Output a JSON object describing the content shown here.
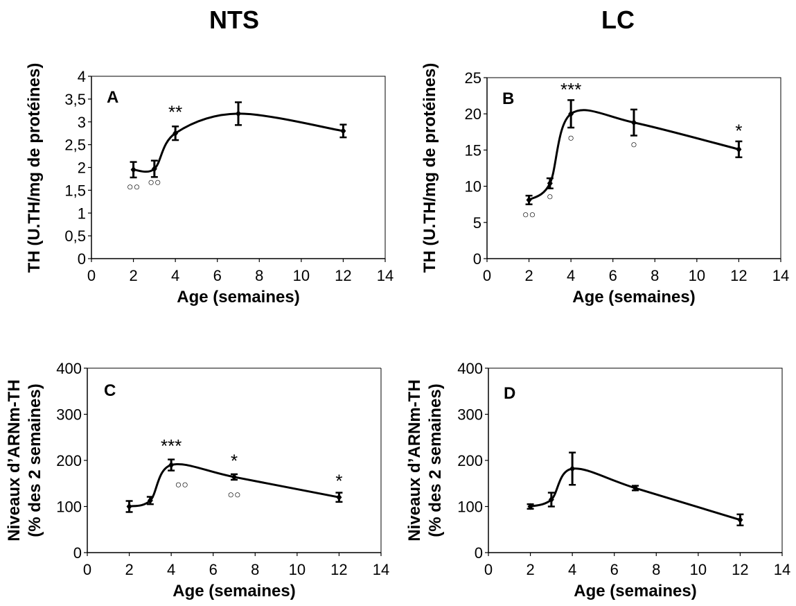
{
  "column_titles": [
    "NTS",
    "LC"
  ],
  "chart_data": [
    {
      "type": "line",
      "panel_label": "A",
      "xlabel": "Age (semaines)",
      "ylabel": [
        "TH (U.TH/mg de protéines)"
      ],
      "xlim": [
        0,
        14
      ],
      "ylim": [
        0,
        4
      ],
      "xticks": [
        0,
        2,
        4,
        6,
        8,
        10,
        12,
        14
      ],
      "yticks": [
        0,
        0.5,
        1,
        1.5,
        2,
        2.5,
        3,
        3.5,
        4
      ],
      "ytick_labels": [
        "0",
        "0,5",
        "1",
        "1,5",
        "2",
        "2,5",
        "3",
        "3,5",
        "4"
      ],
      "grid": false,
      "series": [
        {
          "x": [
            2,
            3,
            4,
            7,
            12
          ],
          "y": [
            1.95,
            1.97,
            2.75,
            3.18,
            2.8
          ],
          "err": [
            0.17,
            0.18,
            0.15,
            0.25,
            0.14
          ]
        }
      ],
      "annotations": [
        {
          "text": "**",
          "x": 4,
          "y": 3.08
        },
        {
          "text": "○○",
          "x": 2,
          "y": 1.5
        },
        {
          "text": "○○",
          "x": 3,
          "y": 1.6
        }
      ]
    },
    {
      "type": "line",
      "panel_label": "B",
      "xlabel": "Age (semaines)",
      "ylabel": [
        "TH (U.TH/mg de protéines)"
      ],
      "xlim": [
        0,
        14
      ],
      "ylim": [
        0,
        25
      ],
      "xticks": [
        0,
        2,
        4,
        6,
        8,
        10,
        12,
        14
      ],
      "yticks": [
        0,
        5,
        10,
        15,
        20,
        25
      ],
      "ytick_labels": [
        "0",
        "5",
        "10",
        "15",
        "20",
        "25"
      ],
      "grid": false,
      "series": [
        {
          "x": [
            2,
            3,
            4,
            7,
            12
          ],
          "y": [
            8.1,
            10.4,
            20.0,
            18.8,
            15.1
          ],
          "err": [
            0.6,
            0.7,
            1.9,
            1.8,
            1.1
          ]
        }
      ],
      "annotations": [
        {
          "text": "***",
          "x": 4,
          "y": 22.5
        },
        {
          "text": "*",
          "x": 12,
          "y": 16.8
        },
        {
          "text": "○○",
          "x": 2,
          "y": 5.6
        },
        {
          "text": "○",
          "x": 3,
          "y": 8.1
        },
        {
          "text": "○",
          "x": 4,
          "y": 16.2
        },
        {
          "text": "○",
          "x": 7,
          "y": 15.3
        }
      ]
    },
    {
      "type": "line",
      "panel_label": "C",
      "xlabel": "Age (semaines)",
      "ylabel": [
        "Niveaux d’ARNm-TH",
        "(% des 2 semaines)"
      ],
      "xlim": [
        0,
        14
      ],
      "ylim": [
        0,
        400
      ],
      "xticks": [
        0,
        2,
        4,
        6,
        8,
        10,
        12,
        14
      ],
      "yticks": [
        0,
        100,
        200,
        300,
        400
      ],
      "ytick_labels": [
        "0",
        "100",
        "200",
        "300",
        "400"
      ],
      "grid": false,
      "series": [
        {
          "x": [
            2,
            3,
            4,
            7,
            12
          ],
          "y": [
            100,
            113,
            190,
            164,
            120
          ],
          "err": [
            12,
            8,
            12,
            6,
            10
          ]
        }
      ],
      "annotations": [
        {
          "text": "***",
          "x": 4,
          "y": 218
        },
        {
          "text": "*",
          "x": 7,
          "y": 186
        },
        {
          "text": "*",
          "x": 12,
          "y": 142
        },
        {
          "text": "○○",
          "x": 4.5,
          "y": 140
        },
        {
          "text": "○○",
          "x": 7,
          "y": 118
        }
      ]
    },
    {
      "type": "line",
      "panel_label": "D",
      "xlabel": "Age (semaines)",
      "ylabel": [
        "Niveaux d’ARNm-TH",
        "(% des 2 semaines)"
      ],
      "xlim": [
        0,
        14
      ],
      "ylim": [
        0,
        400
      ],
      "xticks": [
        0,
        2,
        4,
        6,
        8,
        10,
        12,
        14
      ],
      "yticks": [
        0,
        100,
        200,
        300,
        400
      ],
      "ytick_labels": [
        "0",
        "100",
        "200",
        "300",
        "400"
      ],
      "grid": false,
      "series": [
        {
          "x": [
            2,
            3,
            4,
            7,
            12
          ],
          "y": [
            100,
            115,
            182,
            140,
            71
          ],
          "err": [
            5,
            15,
            35,
            5,
            12
          ]
        }
      ],
      "annotations": []
    }
  ]
}
